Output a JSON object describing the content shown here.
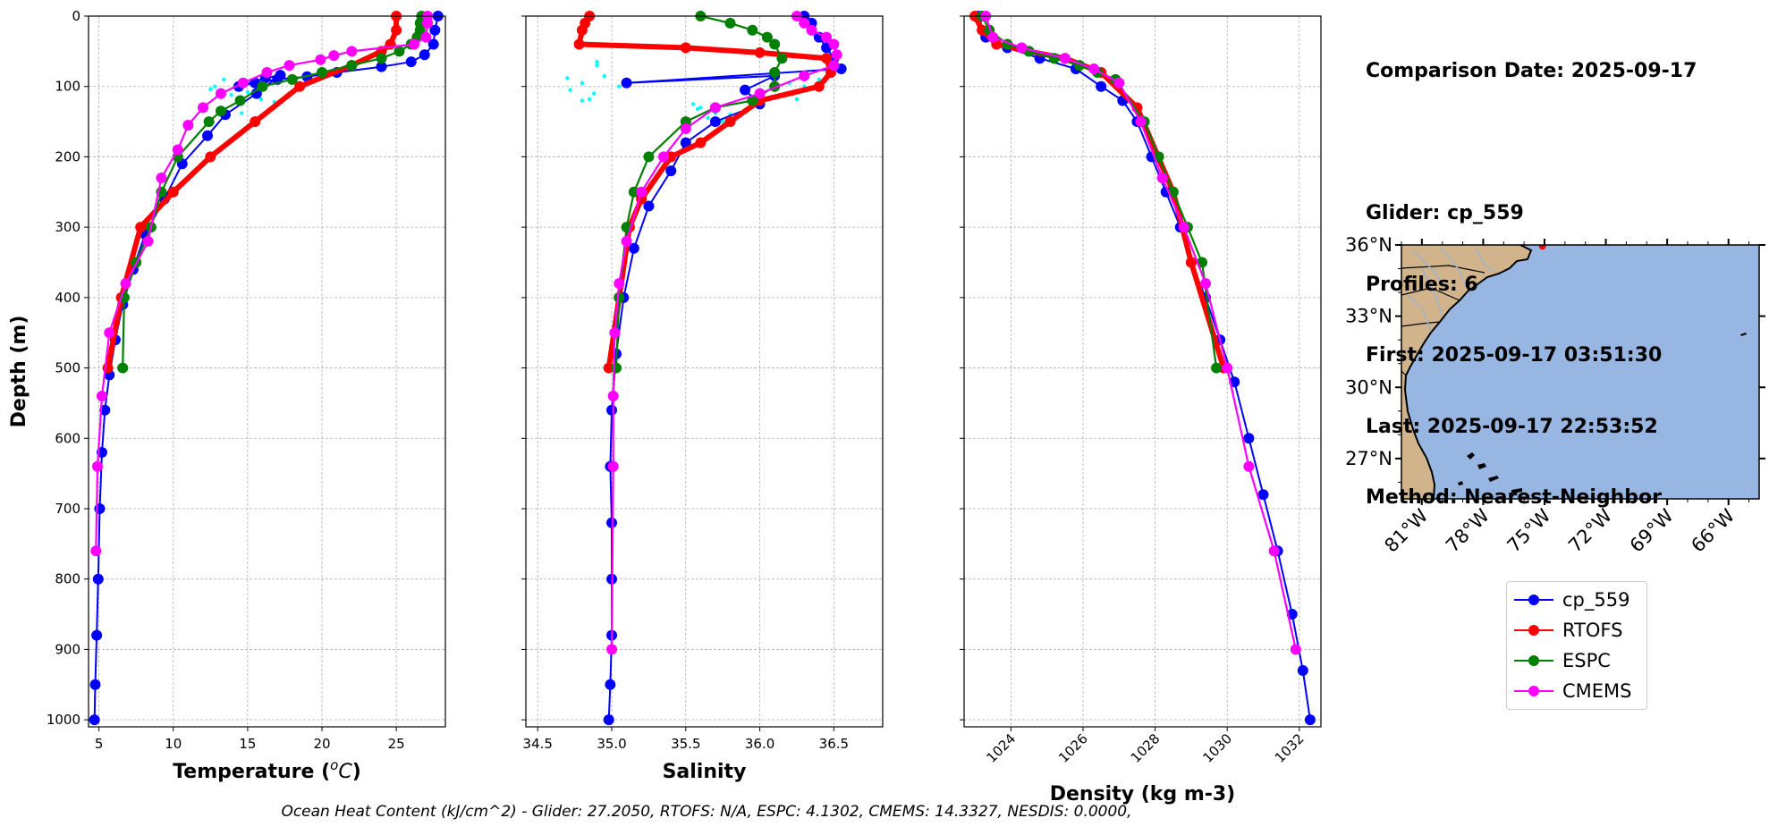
{
  "info": {
    "comparison_date": "Comparison Date: 2025-09-17",
    "glider": "Glider: cp_559",
    "profiles": "Profiles: 6",
    "first": "First: 2025-09-17 03:51:30",
    "last": "Last: 2025-09-17 22:53:52",
    "method": "Method: Nearest-Neighbor"
  },
  "footer": "Ocean Heat Content (kJ/cm^2) - Glider: 27.2050,  RTOFS: N/A,  ESPC: 4.1302,  CMEMS: 14.3327,  NESDIS: 0.0000,",
  "colors": {
    "glider": "#0000ff",
    "rtofs": "#ff0000",
    "espc": "#008000",
    "cmems": "#ff00ff",
    "glider_raw": "#00ffff",
    "land": "#d2b48c",
    "ocean": "#97b6e1",
    "rivers": "#9fb3ce"
  },
  "legend": [
    {
      "label": "cp_559",
      "color": "#0000ff"
    },
    {
      "label": "RTOFS",
      "color": "#ff0000"
    },
    {
      "label": "ESPC",
      "color": "#008000"
    },
    {
      "label": "CMEMS",
      "color": "#ff00ff"
    }
  ],
  "map": {
    "lat_labels": [
      "36°N",
      "33°N",
      "30°N",
      "27°N"
    ],
    "lat_values": [
      36,
      33,
      30,
      27
    ],
    "lon_labels": [
      "81°W",
      "78°W",
      "75°W",
      "72°W",
      "69°W",
      "66°W"
    ],
    "lon_values": [
      -81,
      -78,
      -75,
      -72,
      -69,
      -66
    ],
    "extent": {
      "lon_min": -82,
      "lon_max": -64.5,
      "lat_min": 25.3,
      "lat_max": 36.0
    },
    "glider_position": {
      "lon": -75.1,
      "lat": 35.95
    }
  },
  "chart_data": [
    {
      "type": "line",
      "id": "temperature",
      "xlabel": "Temperature ($^o C$)",
      "xlabel_text": "Temperature (",
      "xlabel_sup": "o",
      "xlabel_var": "C",
      "xlabel_end": ")",
      "ylabel": "Depth (m)",
      "xlim": [
        4.3,
        28.3
      ],
      "ylim": [
        1010,
        0
      ],
      "xticks": [
        5,
        10,
        15,
        20,
        25
      ],
      "yticks": [
        0,
        100,
        200,
        300,
        400,
        500,
        600,
        700,
        800,
        900,
        1000
      ],
      "grid": true,
      "series": [
        {
          "name": "cp_559 raw",
          "style": "scatter",
          "x": [
            12.8,
            13.4,
            13.9,
            14.3,
            15.0,
            15.6,
            16.2,
            13.2,
            14.6,
            12.5,
            15.9,
            16.8,
            13.7
          ],
          "y": [
            100,
            90,
            112,
            120,
            108,
            96,
            82,
            130,
            138,
            104,
            118,
            122,
            142
          ]
        },
        {
          "name": "cp_559",
          "x": [
            27.8,
            27.6,
            27.5,
            26.9,
            26.0,
            24.0,
            21.0,
            19.0,
            17.0,
            15.5,
            14.4,
            16.2,
            17.2,
            15.6,
            13.5,
            12.3,
            10.6,
            9.4,
            8.1,
            7.3,
            6.6,
            6.1,
            5.7,
            5.4,
            5.2,
            5.05,
            4.95,
            4.85,
            4.75,
            4.7
          ],
          "y": [
            0,
            20,
            40,
            55,
            65,
            72,
            80,
            86,
            90,
            95,
            100,
            88,
            84,
            110,
            140,
            170,
            210,
            260,
            310,
            360,
            410,
            460,
            510,
            560,
            620,
            700,
            800,
            880,
            950,
            1000
          ]
        },
        {
          "name": "RTOFS",
          "x": [
            25.0,
            25.0,
            24.6,
            24.0,
            22.0,
            18.5,
            15.5,
            12.5,
            10.0,
            7.8,
            6.5,
            5.6
          ],
          "y": [
            0,
            20,
            40,
            50,
            70,
            100,
            150,
            200,
            250,
            300,
            400,
            500
          ]
        },
        {
          "name": "ESPC",
          "x": [
            26.7,
            26.6,
            26.6,
            26.4,
            26.0,
            25.2,
            24.0,
            22.0,
            20.0,
            18.0,
            16.0,
            14.5,
            13.2,
            12.4,
            10.3,
            9.2,
            8.5,
            7.5,
            6.7,
            6.6
          ],
          "y": [
            0,
            10,
            20,
            30,
            40,
            50,
            60,
            70,
            80,
            90,
            100,
            120,
            135,
            150,
            200,
            250,
            300,
            350,
            400,
            500
          ]
        },
        {
          "name": "CMEMS",
          "x": [
            27.1,
            27.1,
            27.0,
            26.2,
            22.0,
            20.8,
            19.9,
            17.8,
            16.3,
            14.7,
            13.2,
            12.0,
            11.0,
            10.3,
            9.2,
            8.3,
            6.8,
            5.7,
            5.2,
            4.9,
            4.8
          ],
          "y": [
            0,
            10,
            30,
            40,
            50,
            56,
            62,
            70,
            80,
            95,
            110,
            130,
            155,
            190,
            230,
            320,
            380,
            450,
            540,
            640,
            760
          ]
        }
      ]
    },
    {
      "type": "line",
      "id": "salinity",
      "xlabel": "Salinity",
      "ylabel": "",
      "xlim": [
        34.42,
        36.83
      ],
      "ylim": [
        1010,
        0
      ],
      "xticks": [
        34.5,
        35.0,
        35.5,
        36.0,
        36.5
      ],
      "xtick_labels": [
        "34.5",
        "35.0",
        "35.5",
        "36.0",
        "36.5"
      ],
      "yticks": [
        0,
        100,
        200,
        300,
        400,
        500,
        600,
        700,
        800,
        900,
        1000
      ],
      "grid": true,
      "series": [
        {
          "name": "cp_559 raw",
          "style": "scatter",
          "x": [
            34.7,
            34.8,
            34.9,
            34.88,
            34.95,
            35.05,
            34.72,
            34.85,
            35.55,
            35.6,
            35.7,
            35.8,
            36.2,
            36.3,
            36.4,
            35.65,
            35.58,
            35.75,
            36.25,
            36.1,
            34.9,
            34.8
          ],
          "y": [
            88,
            95,
            70,
            110,
            85,
            100,
            105,
            118,
            125,
            130,
            138,
            140,
            95,
            100,
            90,
            145,
            132,
            150,
            118,
            80,
            65,
            120
          ]
        },
        {
          "name": "cp_559",
          "x": [
            36.3,
            36.35,
            36.4,
            36.45,
            36.5,
            36.55,
            35.1,
            36.1,
            35.9,
            36.0,
            35.7,
            35.5,
            35.4,
            35.25,
            35.15,
            35.08,
            35.03,
            35.0,
            34.99,
            35.0,
            35.0,
            35.0,
            34.99,
            34.98
          ],
          "y": [
            0,
            10,
            30,
            45,
            60,
            75,
            95,
            85,
            105,
            125,
            150,
            180,
            220,
            270,
            330,
            400,
            480,
            560,
            640,
            720,
            800,
            880,
            950,
            1000
          ]
        },
        {
          "name": "RTOFS",
          "x": [
            34.85,
            34.82,
            34.8,
            34.78,
            35.5,
            36.0,
            36.45,
            36.48,
            36.4,
            36.0,
            35.8,
            35.6,
            35.4,
            35.2,
            35.12,
            35.05,
            34.98
          ],
          "y": [
            0,
            10,
            20,
            40,
            45,
            52,
            60,
            80,
            100,
            120,
            150,
            180,
            200,
            260,
            300,
            400,
            500
          ]
        },
        {
          "name": "ESPC",
          "x": [
            35.6,
            35.8,
            35.95,
            36.05,
            36.1,
            36.15,
            36.1,
            36.1,
            35.95,
            35.7,
            35.5,
            35.25,
            35.15,
            35.1,
            35.05,
            35.03
          ],
          "y": [
            0,
            10,
            20,
            30,
            40,
            60,
            80,
            100,
            120,
            130,
            150,
            200,
            250,
            300,
            400,
            500
          ]
        },
        {
          "name": "CMEMS",
          "x": [
            36.25,
            36.3,
            36.35,
            36.45,
            36.5,
            36.52,
            36.5,
            36.3,
            36.0,
            35.7,
            35.5,
            35.35,
            35.2,
            35.1,
            35.05,
            35.02,
            35.01,
            35.01,
            35.0
          ],
          "y": [
            0,
            10,
            20,
            30,
            40,
            55,
            70,
            85,
            110,
            130,
            160,
            200,
            250,
            320,
            380,
            450,
            540,
            640,
            900
          ]
        }
      ]
    },
    {
      "type": "line",
      "id": "density",
      "xlabel": "Density (kg m-3)",
      "ylabel": "",
      "xlim": [
        1022.7,
        1032.6
      ],
      "ylim": [
        1010,
        0
      ],
      "xticks": [
        1024,
        1026,
        1028,
        1030,
        1032
      ],
      "xtick_labels": [
        "1024",
        "1026",
        "1028",
        "1030",
        "1032"
      ],
      "yticks": [
        0,
        100,
        200,
        300,
        400,
        500,
        600,
        700,
        800,
        900,
        1000
      ],
      "grid": true,
      "series": [
        {
          "name": "cp_559",
          "x": [
            1023.1,
            1023.3,
            1023.9,
            1024.8,
            1025.8,
            1026.5,
            1027.1,
            1027.5,
            1027.9,
            1028.3,
            1028.7,
            1029.0,
            1029.4,
            1029.8,
            1030.2,
            1030.6,
            1031.0,
            1031.4,
            1031.8,
            1032.1,
            1032.3
          ],
          "y": [
            0,
            30,
            45,
            60,
            75,
            100,
            120,
            150,
            200,
            250,
            300,
            350,
            400,
            460,
            520,
            600,
            680,
            760,
            850,
            930,
            1000
          ]
        },
        {
          "name": "RTOFS",
          "x": [
            1023.0,
            1023.2,
            1023.6,
            1024.5,
            1025.5,
            1026.5,
            1027.5,
            1028.5,
            1029.0,
            1029.9
          ],
          "y": [
            0,
            20,
            40,
            50,
            60,
            80,
            130,
            250,
            350,
            500
          ]
        },
        {
          "name": "ESPC",
          "x": [
            1023.2,
            1023.4,
            1023.9,
            1024.5,
            1025.2,
            1025.9,
            1026.4,
            1026.9,
            1027.7,
            1028.1,
            1028.5,
            1028.9,
            1029.3,
            1029.7
          ],
          "y": [
            0,
            20,
            40,
            50,
            60,
            70,
            80,
            90,
            150,
            200,
            250,
            300,
            350,
            500
          ]
        },
        {
          "name": "CMEMS",
          "x": [
            1023.3,
            1023.5,
            1024.3,
            1025.5,
            1026.3,
            1027.0,
            1027.6,
            1028.2,
            1028.8,
            1029.4,
            1030.0,
            1030.6,
            1031.3,
            1031.9
          ],
          "y": [
            0,
            30,
            45,
            60,
            75,
            95,
            150,
            230,
            300,
            380,
            500,
            640,
            760,
            900
          ]
        }
      ]
    }
  ]
}
